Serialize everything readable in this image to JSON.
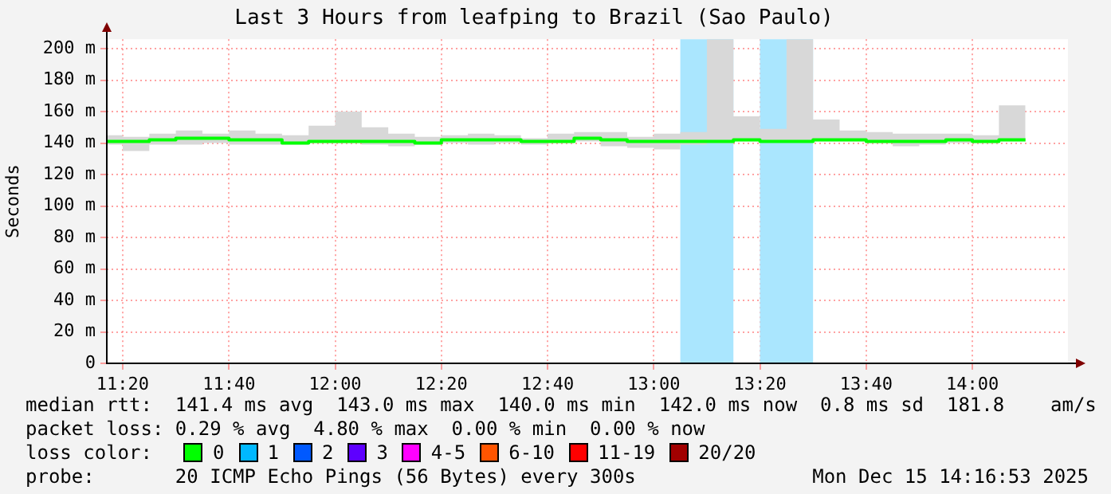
{
  "chart_data": {
    "type": "step",
    "title": "Last 3 Hours from leafping to Brazil (Sao Paulo)",
    "ylabel": "Seconds",
    "x": [
      11.2833,
      11.3333,
      11.4167,
      11.5,
      11.5833,
      11.6667,
      11.75,
      11.8333,
      11.9167,
      12,
      12.0833,
      12.1667,
      12.25,
      12.3333,
      12.4167,
      12.5,
      12.5833,
      12.6667,
      12.75,
      12.8333,
      12.9167,
      13,
      13.0833,
      13.1667,
      13.25,
      13.3333,
      13.4167,
      13.5,
      13.5833,
      13.6667,
      13.75,
      13.8333,
      13.9167,
      14,
      14.0833,
      14.1667
    ],
    "series": [
      {
        "name": "0",
        "color": "#00ff00",
        "values": [
          141,
          141,
          142,
          143,
          143,
          142,
          142,
          140,
          141,
          141,
          141,
          141,
          140,
          142,
          142,
          142,
          141,
          141,
          143,
          142,
          141,
          141,
          141,
          141,
          142,
          141,
          141,
          142,
          142,
          141,
          141,
          141,
          142,
          141,
          142,
          142
        ],
        "lower": [
          139,
          135,
          139,
          139,
          140,
          139,
          139,
          139,
          140,
          140,
          139,
          138,
          139,
          140,
          139,
          140,
          139,
          140,
          141,
          138,
          137,
          136,
          139,
          140,
          141,
          141,
          141,
          141,
          141,
          140,
          138,
          139,
          140,
          140,
          141,
          141
        ],
        "upper": [
          145,
          144,
          146,
          148,
          146,
          148,
          146,
          145,
          151,
          160,
          150,
          146,
          144,
          145,
          146,
          145,
          143,
          146,
          147,
          147,
          144,
          146,
          147,
          206,
          157,
          149,
          206,
          155,
          148,
          147,
          146,
          146,
          146,
          145,
          164,
          164
        ]
      },
      {
        "name": "1",
        "color": "#00b8ff",
        "values": [
          null,
          null,
          null,
          null,
          null,
          null,
          null,
          null,
          null,
          null,
          null,
          null,
          null,
          null,
          null,
          null,
          null,
          null,
          null,
          null,
          null,
          null,
          null,
          null,
          null,
          null,
          null,
          null,
          null,
          null,
          null,
          null,
          null,
          null,
          null,
          null
        ]
      },
      {
        "name": "2",
        "color": "#0059ff",
        "values": [
          null,
          null,
          null,
          null,
          null,
          null,
          null,
          null,
          null,
          null,
          null,
          null,
          null,
          null,
          null,
          null,
          null,
          null,
          null,
          null,
          null,
          null,
          null,
          null,
          null,
          null,
          null,
          null,
          null,
          null,
          null,
          null,
          null,
          null,
          null,
          null
        ]
      },
      {
        "name": "3",
        "color": "#5e00ff",
        "values": [
          null,
          null,
          null,
          null,
          null,
          null,
          null,
          null,
          null,
          null,
          null,
          null,
          null,
          null,
          null,
          null,
          null,
          null,
          null,
          null,
          null,
          null,
          null,
          null,
          null,
          null,
          null,
          null,
          null,
          null,
          null,
          null,
          null,
          null,
          null,
          null
        ]
      },
      {
        "name": "4-5",
        "color": "#ff00ff",
        "values": [
          null,
          null,
          null,
          null,
          null,
          null,
          null,
          null,
          null,
          null,
          null,
          null,
          null,
          null,
          null,
          null,
          null,
          null,
          null,
          null,
          null,
          null,
          null,
          null,
          null,
          null,
          null,
          null,
          null,
          null,
          null,
          null,
          null,
          null,
          null,
          null
        ]
      },
      {
        "name": "6-10",
        "color": "#ff5500",
        "values": [
          null,
          null,
          null,
          null,
          null,
          null,
          null,
          null,
          null,
          null,
          null,
          null,
          null,
          null,
          null,
          null,
          null,
          null,
          null,
          null,
          null,
          null,
          null,
          null,
          null,
          null,
          null,
          null,
          null,
          null,
          null,
          null,
          null,
          null,
          null,
          null
        ]
      },
      {
        "name": "11-19",
        "color": "#ff0000",
        "values": [
          null,
          null,
          null,
          null,
          null,
          null,
          null,
          null,
          null,
          null,
          null,
          null,
          null,
          null,
          null,
          null,
          null,
          null,
          null,
          null,
          null,
          null,
          null,
          null,
          null,
          null,
          null,
          null,
          null,
          null,
          null,
          null,
          null,
          null,
          null,
          null
        ]
      },
      {
        "name": "20/20",
        "color": "#a10000",
        "values": [
          null,
          null,
          null,
          null,
          null,
          null,
          null,
          null,
          null,
          null,
          null,
          null,
          null,
          null,
          null,
          null,
          null,
          null,
          null,
          null,
          null,
          null,
          null,
          null,
          null,
          null,
          null,
          null,
          null,
          null,
          null,
          null,
          null,
          null,
          null,
          null
        ]
      }
    ],
    "bands": [
      {
        "axis": "x",
        "from": 13.0833,
        "to": 13.25,
        "color": "#aae6fe"
      },
      {
        "axis": "x",
        "from": 13.3333,
        "to": 13.5,
        "color": "#aae6fe"
      }
    ],
    "xlim": [
      11.2833,
      14.3
    ],
    "xticks": [
      {
        "value": 11.3333,
        "label": "11:20"
      },
      {
        "value": 11.6667,
        "label": "11:40"
      },
      {
        "value": 12,
        "label": "12:00"
      },
      {
        "value": 12.3333,
        "label": "12:20"
      },
      {
        "value": 12.6667,
        "label": "12:40"
      },
      {
        "value": 13,
        "label": "13:00"
      },
      {
        "value": 13.3333,
        "label": "13:20"
      },
      {
        "value": 13.6667,
        "label": "13:40"
      },
      {
        "value": 14,
        "label": "14:00"
      }
    ],
    "ylim": [
      0,
      206
    ],
    "yticks": [
      {
        "value": 0,
        "label": "0"
      },
      {
        "value": 20,
        "label": "20 m"
      },
      {
        "value": 40,
        "label": "40 m"
      },
      {
        "value": 60,
        "label": "60 m"
      },
      {
        "value": 80,
        "label": "80 m"
      },
      {
        "value": 100,
        "label": "100 m"
      },
      {
        "value": 120,
        "label": "120 m"
      },
      {
        "value": 140,
        "label": "140 m"
      },
      {
        "value": 160,
        "label": "160 m"
      },
      {
        "value": 180,
        "label": "180 m"
      },
      {
        "value": 200,
        "label": "200 m"
      }
    ],
    "grid": true,
    "legend": "bottom",
    "legend_title": "loss color:",
    "line_style": "solid",
    "marker": "none",
    "annotations": [
      "median rtt:  141.4 ms avg  143.0 ms max  140.0 ms min  142.0 ms now  0.8 ms sd  181.8    am/s",
      "packet loss: 0.29 % avg  4.80 % max  0.00 % min  0.00 % now",
      "probe:       20 ICMP Echo Pings (56 Bytes) every 300s",
      "Mon Dec 15 14:16:53 2025"
    ]
  }
}
